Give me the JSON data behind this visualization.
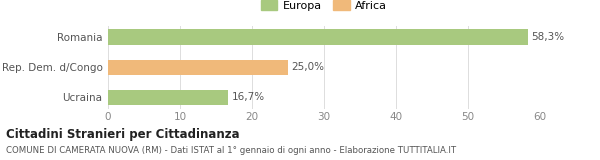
{
  "categories": [
    "Romania",
    "Rep. Dem. d/Congo",
    "Ucraina"
  ],
  "values": [
    58.3,
    25.0,
    16.7
  ],
  "colors": [
    "#a8c97f",
    "#f0b97a",
    "#a8c97f"
  ],
  "labels": [
    "58,3%",
    "25,0%",
    "16,7%"
  ],
  "legend": [
    {
      "label": "Europa",
      "color": "#a8c97f"
    },
    {
      "label": "Africa",
      "color": "#f0b97a"
    }
  ],
  "xlim": [
    0,
    60
  ],
  "xticks": [
    0,
    10,
    20,
    30,
    40,
    50,
    60
  ],
  "title": "Cittadini Stranieri per Cittadinanza",
  "subtitle": "COMUNE DI CAMERATA NUOVA (RM) - Dati ISTAT al 1° gennaio di ogni anno - Elaborazione TUTTITALIA.IT",
  "background_color": "#ffffff",
  "bar_height": 0.5
}
